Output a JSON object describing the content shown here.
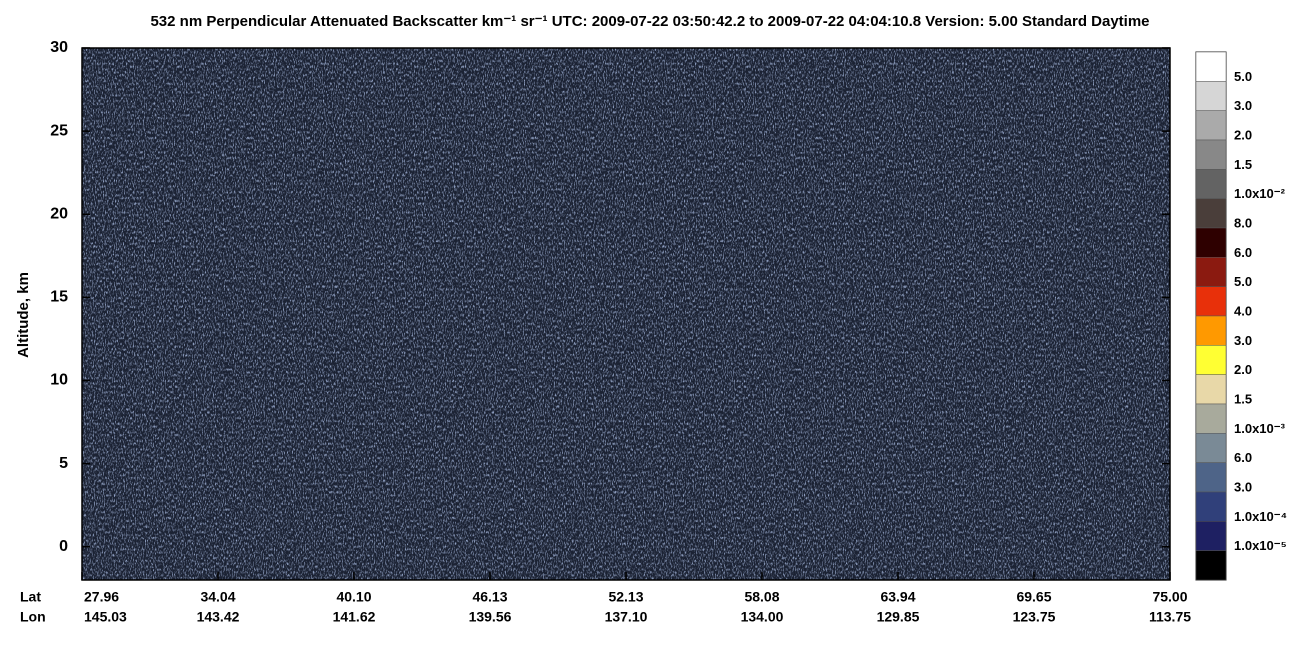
{
  "chart_data": {
    "type": "curtain",
    "title": "532 nm Perpendicular Attenuated Backscatter km⁻¹ sr⁻¹  UTC: 2009-07-22 03:50:42.2 to 2009-07-22 04:04:10.8  Version: 5.00 Standard Daytime",
    "y_label": "Altitude, km",
    "ylim": [
      -2,
      30
    ],
    "yticks": [
      0,
      5,
      10,
      15,
      20,
      25,
      30
    ],
    "x_row_labels": [
      "Lat",
      "Lon"
    ],
    "lat": [
      "27.96",
      "34.04",
      "40.10",
      "46.13",
      "52.13",
      "58.08",
      "63.94",
      "69.65",
      "75.00"
    ],
    "lon": [
      "145.03",
      "143.42",
      "141.62",
      "139.56",
      "137.10",
      "134.00",
      "129.85",
      "123.75",
      "113.75"
    ],
    "colorbar": {
      "labels": [
        "5.0",
        "3.0",
        "2.0",
        "1.5",
        "1.0x10⁻²",
        "8.0",
        "6.0",
        "5.0",
        "4.0",
        "3.0",
        "2.0",
        "1.5",
        "1.0x10⁻³",
        "6.0",
        "3.0",
        "1.0x10⁻⁴",
        "1.0x10⁻⁵",
        null
      ],
      "colors": [
        "#ffffff",
        "#d6d6d6",
        "#aaaaaa",
        "#888888",
        "#636363",
        "#4a3e3a",
        "#2e0000",
        "#8b1a10",
        "#e8300a",
        "#ff9900",
        "#ffff33",
        "#e8d8a8",
        "#a8aa9c",
        "#7a8a96",
        "#4e6488",
        "#30407a",
        "#1e2062",
        "#000000"
      ]
    }
  }
}
